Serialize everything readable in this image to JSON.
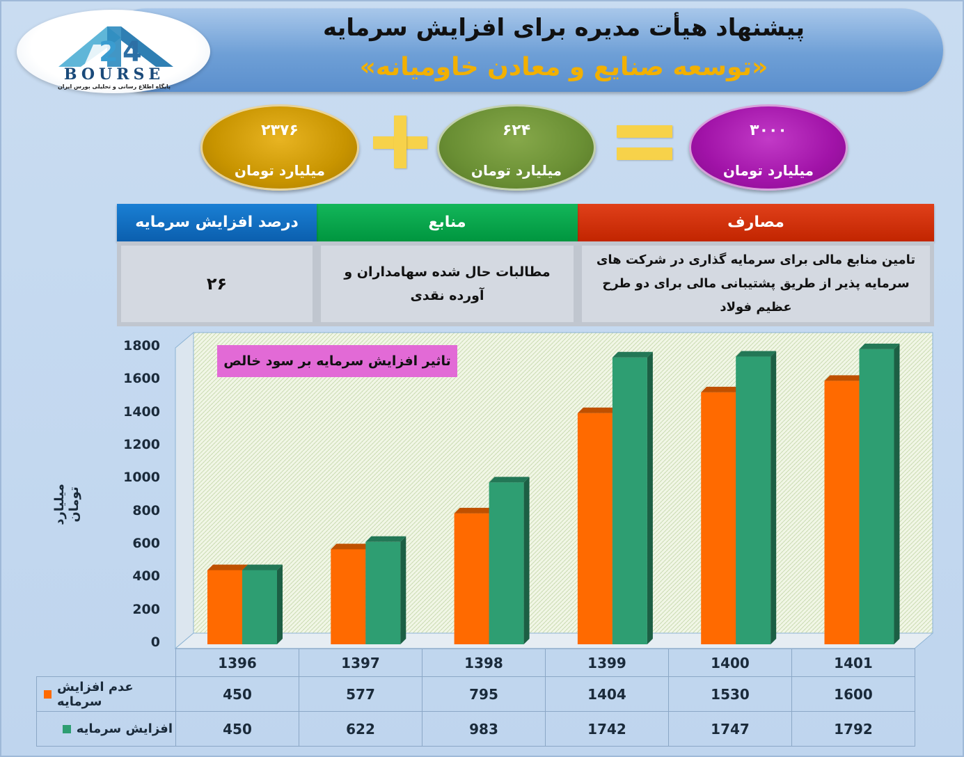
{
  "header": {
    "title": "پیشنهاد هیأت مدیره برای افزایش سرمایه",
    "subtitle": "«توسعه صنایع و معادن خاومیانه»"
  },
  "logo": {
    "word": "BOURSE",
    "tagline": "پایگاه اطلاع رسانی و تحلیلی بورس ایران"
  },
  "equation": {
    "gold": {
      "value": "۲۳۷۶",
      "unit": "میلیارد تومان",
      "color": "#c89400"
    },
    "green": {
      "value": "۶۲۴",
      "unit": "میلیارد تومان",
      "color": "#6a8f34"
    },
    "purple": {
      "value": "۳۰۰۰",
      "unit": "میلیارد تومان",
      "color": "#a113a8"
    },
    "operators": [
      "plus",
      "equals"
    ]
  },
  "info_table": {
    "headers": {
      "expenses": "مصارف",
      "sources": "منابع",
      "percent": "درصد افزایش سرمایه"
    },
    "values": {
      "expenses": "تامین منابع مالی برای سرمایه گذاری در شرکت های سرمایه پذیر از طریق پشتیبانی مالی برای دو طرح عظیم فولاد",
      "sources": "مطالبات حال شده سهامداران و آورده نقدی",
      "percent": "۲۶"
    },
    "colors": {
      "expenses": "#c22500",
      "sources": "#00963f",
      "percent": "#0b5fae"
    }
  },
  "chart_data": {
    "type": "bar",
    "title": "تاثیر افزایش سرمایه بر سود خالص",
    "ylabel": "میلیارد تومان",
    "xlabel": "",
    "ylim": [
      0,
      1800
    ],
    "yticks": [
      "0",
      "200",
      "400",
      "600",
      "800",
      "1000",
      "1200",
      "1400",
      "1600",
      "1800"
    ],
    "categories": [
      "1396",
      "1397",
      "1398",
      "1399",
      "1400",
      "1401"
    ],
    "series": [
      {
        "name": "عدم افزایش سرمایه",
        "color": "#ff6a00",
        "values": [
          450,
          577,
          795,
          1404,
          1530,
          1600
        ]
      },
      {
        "name": "افزایش سرمایه",
        "color": "#2e9e72",
        "values": [
          450,
          622,
          983,
          1742,
          1747,
          1792
        ]
      }
    ],
    "values_text": [
      [
        "450",
        "577",
        "795",
        "1404",
        "1530",
        "1600"
      ],
      [
        "450",
        "622",
        "983",
        "1742",
        "1747",
        "1792"
      ]
    ],
    "grid": false,
    "legend": "data-table-left"
  }
}
